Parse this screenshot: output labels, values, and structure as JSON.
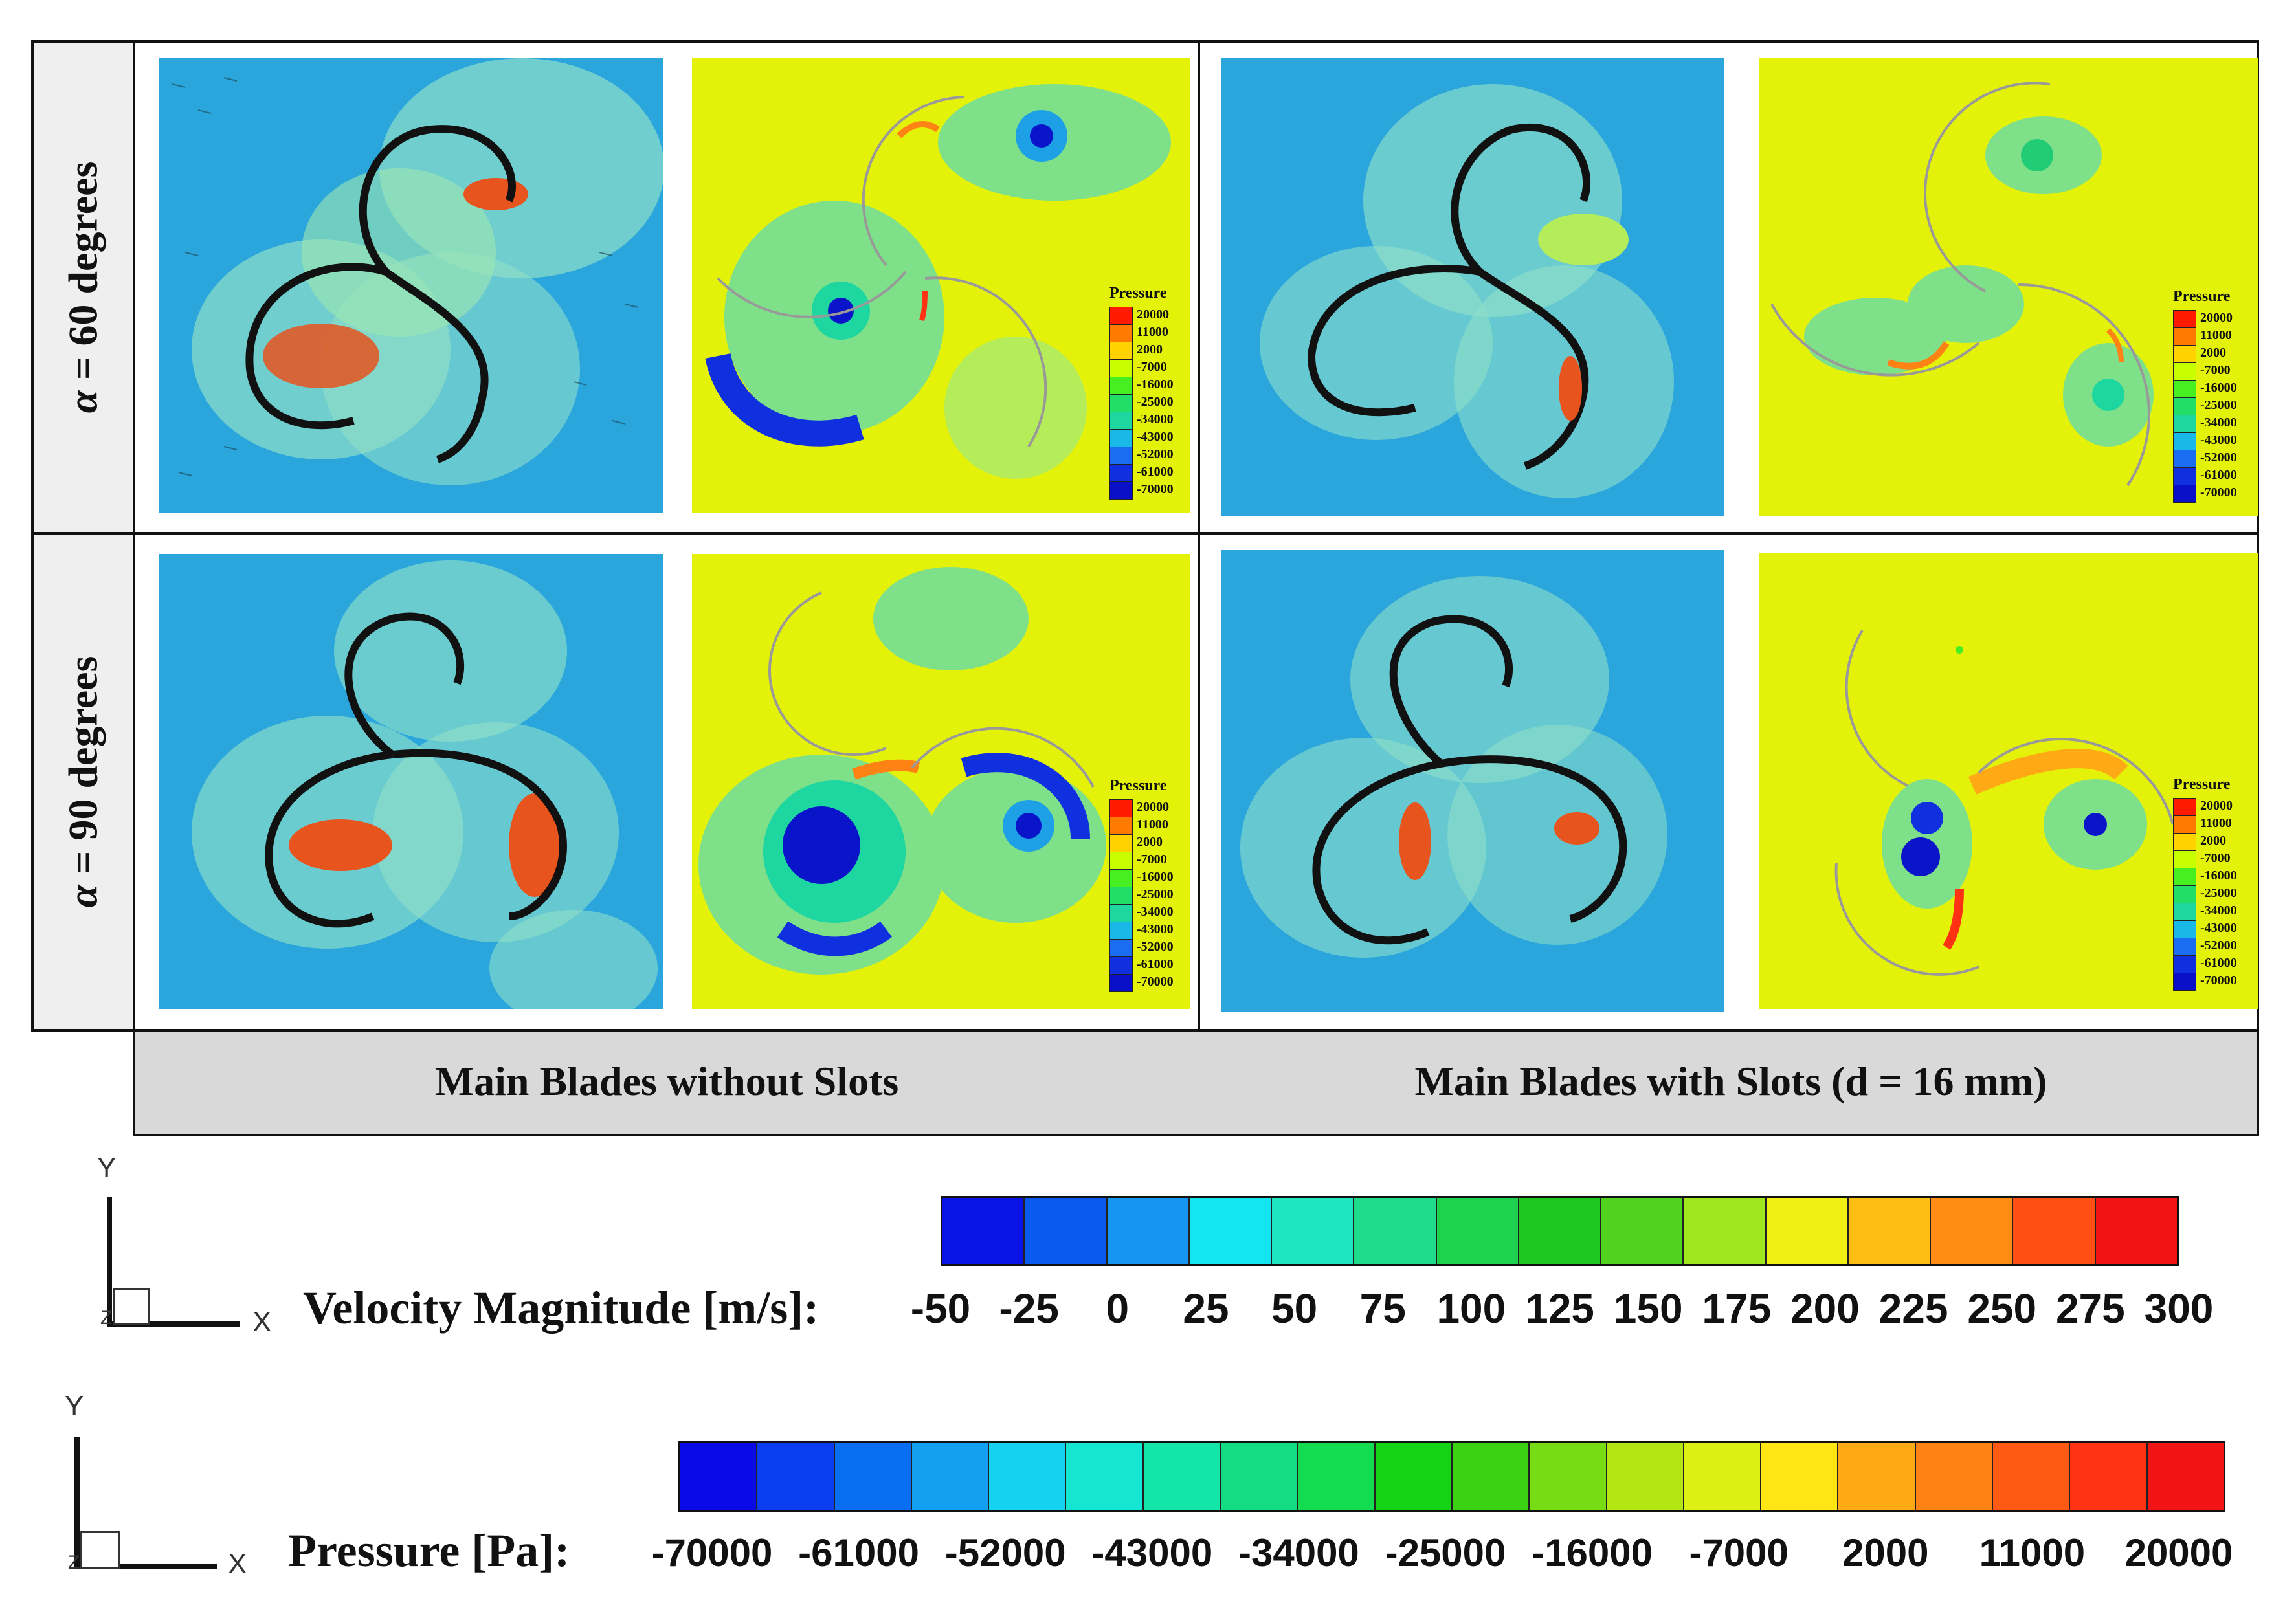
{
  "rows": [
    {
      "alpha": "α",
      "label": " = 60 degrees"
    },
    {
      "alpha": "α",
      "label": " = 90 degrees"
    }
  ],
  "columns": [
    {
      "caption": "Main Blades without Slots"
    },
    {
      "caption": "Main Blades with Slots (d = 16 mm)"
    }
  ],
  "panel_legend": {
    "title": "Pressure",
    "values": [
      "20000",
      "11000",
      "2000",
      "-7000",
      "-16000",
      "-25000",
      "-34000",
      "-43000",
      "-52000",
      "-61000",
      "-70000"
    ],
    "colors": [
      "#ff1a00",
      "#ff7a00",
      "#ffd200",
      "#c8ff00",
      "#46ee22",
      "#22dd66",
      "#1ed7a0",
      "#1ab8e6",
      "#1a6cf0",
      "#1030e0",
      "#0a10c8"
    ]
  },
  "velocity_bar": {
    "title": "Velocity Magnitude [m/s]:",
    "ticks": [
      "-50",
      "-25",
      "0",
      "25",
      "50",
      "75",
      "100",
      "125",
      "150",
      "175",
      "200",
      "225",
      "250",
      "275",
      "300"
    ],
    "colors": [
      "#0a14e6",
      "#0a5af0",
      "#1496f2",
      "#14e6f0",
      "#1ee6be",
      "#1edc8c",
      "#1ed250",
      "#1ec81e",
      "#50d21e",
      "#a0e61e",
      "#f0f014",
      "#ffbe14",
      "#ff8c14",
      "#ff5014",
      "#f01414"
    ]
  },
  "pressure_bar": {
    "title": "Pressure [Pa]:",
    "ticks": [
      "-70000",
      "-61000",
      "-52000",
      "-43000",
      "-34000",
      "-25000",
      "-16000",
      "-7000",
      "2000",
      "11000",
      "20000"
    ],
    "colors": [
      "#0a0ae6",
      "#0a3cf0",
      "#0a6ef2",
      "#14a0f0",
      "#14d2f0",
      "#14e6d2",
      "#14e6aa",
      "#14dc82",
      "#14dc50",
      "#14d214",
      "#3cd214",
      "#78dc14",
      "#b4e614",
      "#dcf014",
      "#ffe614",
      "#ffaa14",
      "#ff8214",
      "#ff5a14",
      "#ff3214",
      "#f01414"
    ]
  },
  "axis": {
    "y": "Y",
    "x": "X",
    "z": "Z"
  },
  "accent_velocity_bg": "#2aa6dc",
  "accent_pressure_bg": "#e4f20a"
}
